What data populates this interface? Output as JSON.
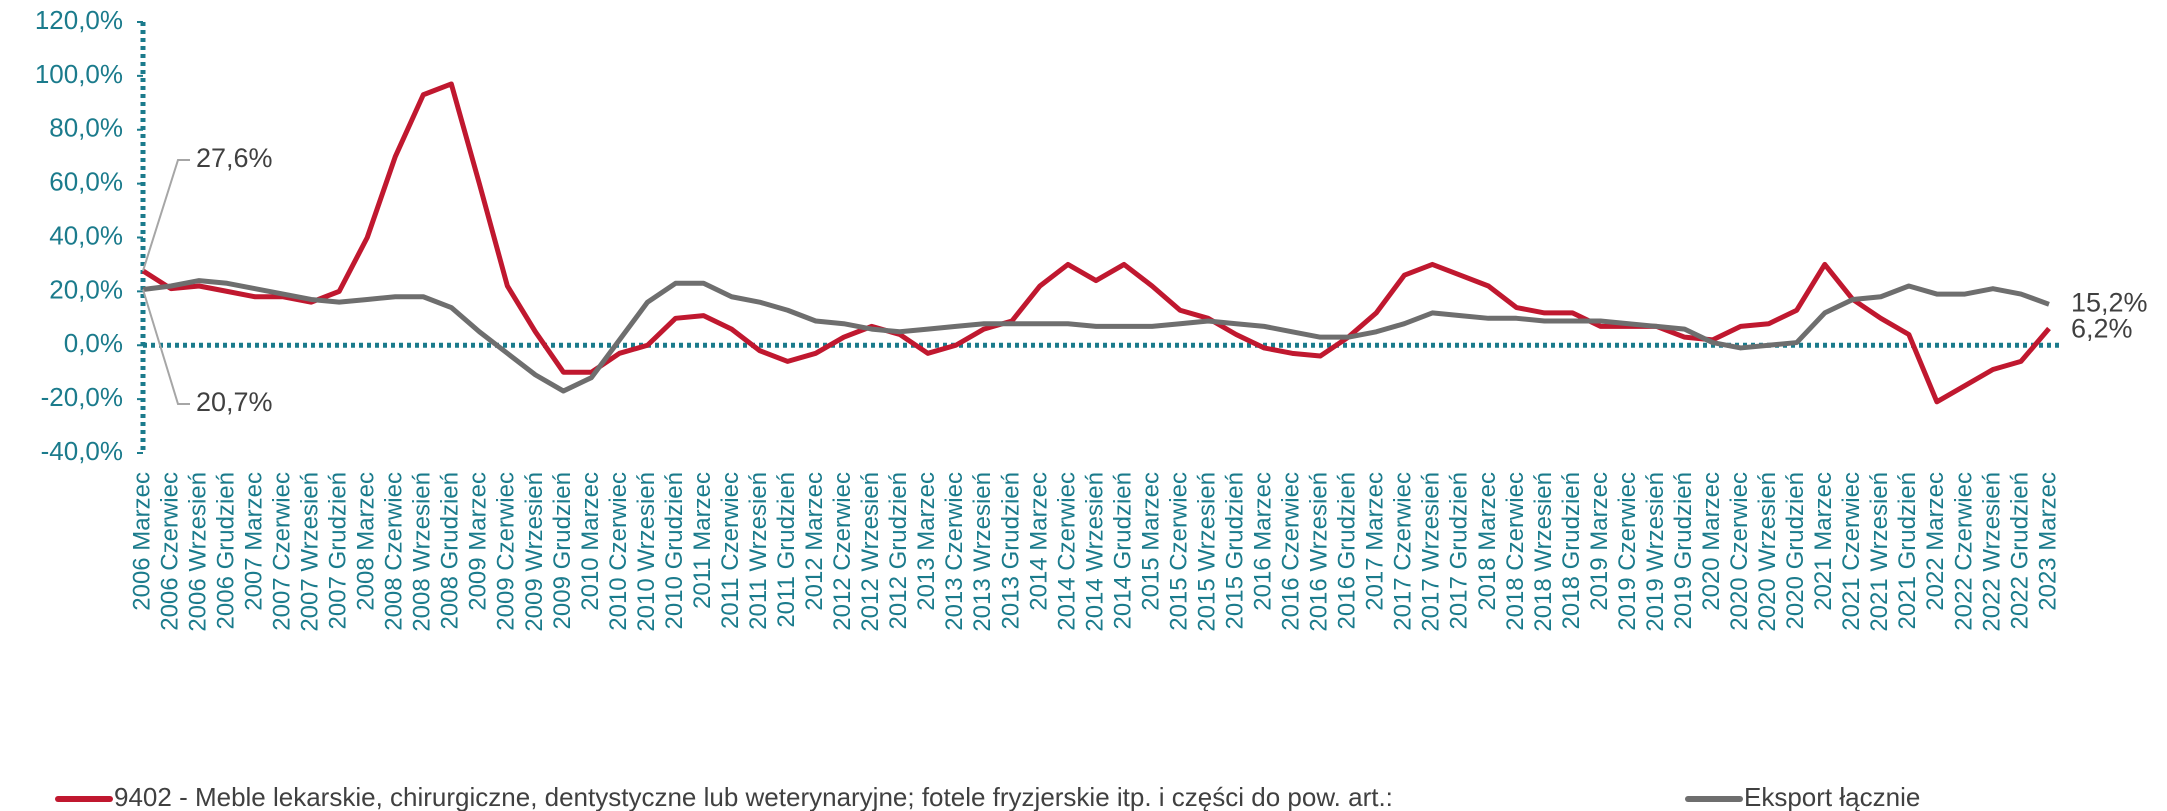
{
  "chart_data": {
    "type": "line",
    "categories": [
      "2006 Marzec",
      "2006 Czerwiec",
      "2006 Wrzesień",
      "2006 Grudzień",
      "2007 Marzec",
      "2007 Czerwiec",
      "2007 Wrzesień",
      "2007 Grudzień",
      "2008 Marzec",
      "2008 Czerwiec",
      "2008 Wrzesień",
      "2008 Grudzień",
      "2009 Marzec",
      "2009 Czerwiec",
      "2009 Wrzesień",
      "2009 Grudzień",
      "2010 Marzec",
      "2010 Czerwiec",
      "2010 Wrzesień",
      "2010 Grudzień",
      "2011 Marzec",
      "2011 Czerwiec",
      "2011 Wrzesień",
      "2011 Grudzień",
      "2012 Marzec",
      "2012 Czerwiec",
      "2012 Wrzesień",
      "2012 Grudzień",
      "2013 Marzec",
      "2013 Czerwiec",
      "2013 Wrzesień",
      "2013 Grudzień",
      "2014 Marzec",
      "2014 Czerwiec",
      "2014 Wrzesień",
      "2014 Grudzień",
      "2015 Marzec",
      "2015 Czerwiec",
      "2015 Wrzesień",
      "2015 Grudzień",
      "2016 Marzec",
      "2016 Czerwiec",
      "2016 Wrzesień",
      "2016 Grudzień",
      "2017 Marzec",
      "2017 Czerwiec",
      "2017 Wrzesień",
      "2017 Grudzień",
      "2018 Marzec",
      "2018 Czerwiec",
      "2018 Wrzesień",
      "2018 Grudzień",
      "2019 Marzec",
      "2019 Czerwiec",
      "2019 Wrzesień",
      "2019 Grudzień",
      "2020 Marzec",
      "2020 Czerwiec",
      "2020 Wrzesień",
      "2020 Grudzień",
      "2021 Marzec",
      "2021 Czerwiec",
      "2021 Wrzesień",
      "2021 Grudzień",
      "2022 Marzec",
      "2022 Czerwiec",
      "2022 Wrzesień",
      "2022 Grudzień",
      "2023 Marzec"
    ],
    "series": [
      {
        "name": "9402 - Meble lekarskie, chirurgiczne, dentystyczne lub weterynaryjne; fotele fryzjerskie itp. i części do pow. art.:",
        "color": "#c0182f",
        "values": [
          27.6,
          21,
          22,
          20,
          18,
          18,
          16,
          20,
          40,
          70,
          93,
          97,
          60,
          22,
          5,
          -10,
          -10,
          -3,
          0,
          10,
          11,
          6,
          -2,
          -6,
          -3,
          3,
          7,
          4,
          -3,
          0,
          6,
          9,
          22,
          30,
          24,
          30,
          22,
          13,
          10,
          4,
          -1,
          -3,
          -4,
          3,
          12,
          26,
          30,
          26,
          22,
          14,
          12,
          12,
          7,
          7,
          7,
          3,
          2,
          7,
          8,
          13,
          30,
          17,
          10,
          4,
          -21,
          -15,
          -9,
          -6,
          6.2
        ],
        "value_labels": [
          "27,6%",
          null,
          null,
          null,
          null,
          null,
          null,
          null,
          null,
          null,
          null,
          null,
          null,
          null,
          null,
          null,
          null,
          null,
          null,
          null,
          null,
          null,
          null,
          null,
          null,
          null,
          null,
          null,
          null,
          null,
          null,
          null,
          null,
          null,
          null,
          null,
          null,
          null,
          null,
          null,
          null,
          null,
          null,
          null,
          null,
          null,
          null,
          null,
          null,
          null,
          null,
          null,
          null,
          null,
          null,
          null,
          null,
          null,
          null,
          null,
          null,
          null,
          null,
          null,
          null,
          null,
          null,
          null,
          "6,2%"
        ]
      },
      {
        "name": "Eksport łącznie",
        "color": "#6e6e6e",
        "values": [
          20.7,
          22,
          24,
          23,
          21,
          19,
          17,
          16,
          17,
          18,
          18,
          14,
          5,
          -3,
          -11,
          -17,
          -12,
          2,
          16,
          23,
          23,
          18,
          16,
          13,
          9,
          8,
          6,
          5,
          6,
          7,
          8,
          8,
          8,
          8,
          7,
          7,
          7,
          8,
          9,
          8,
          7,
          5,
          3,
          3,
          5,
          8,
          12,
          11,
          10,
          10,
          9,
          9,
          9,
          8,
          7,
          6,
          1,
          -1,
          0,
          1,
          12,
          17,
          18,
          22,
          19,
          19,
          21,
          19,
          15.2
        ],
        "value_labels": [
          "20,7%",
          null,
          null,
          null,
          null,
          null,
          null,
          null,
          null,
          null,
          null,
          null,
          null,
          null,
          null,
          null,
          null,
          null,
          null,
          null,
          null,
          null,
          null,
          null,
          null,
          null,
          null,
          null,
          null,
          null,
          null,
          null,
          null,
          null,
          null,
          null,
          null,
          null,
          null,
          null,
          null,
          null,
          null,
          null,
          null,
          null,
          null,
          null,
          null,
          null,
          null,
          null,
          null,
          null,
          null,
          null,
          null,
          null,
          null,
          null,
          null,
          null,
          null,
          null,
          null,
          null,
          null,
          null,
          "15,2%"
        ]
      }
    ],
    "ylim": [
      -40,
      120
    ],
    "yticks": [
      {
        "value": -40,
        "label": "-40,0%"
      },
      {
        "value": -20,
        "label": "-20,0%"
      },
      {
        "value": 0,
        "label": "0,0%"
      },
      {
        "value": 20,
        "label": "20,0%"
      },
      {
        "value": 40,
        "label": "40,0%"
      },
      {
        "value": 60,
        "label": "60,0%"
      },
      {
        "value": 80,
        "label": "80,0%"
      },
      {
        "value": 100,
        "label": "100,0%"
      },
      {
        "value": 120,
        "label": "120,0%"
      }
    ],
    "legend": "bottom"
  }
}
